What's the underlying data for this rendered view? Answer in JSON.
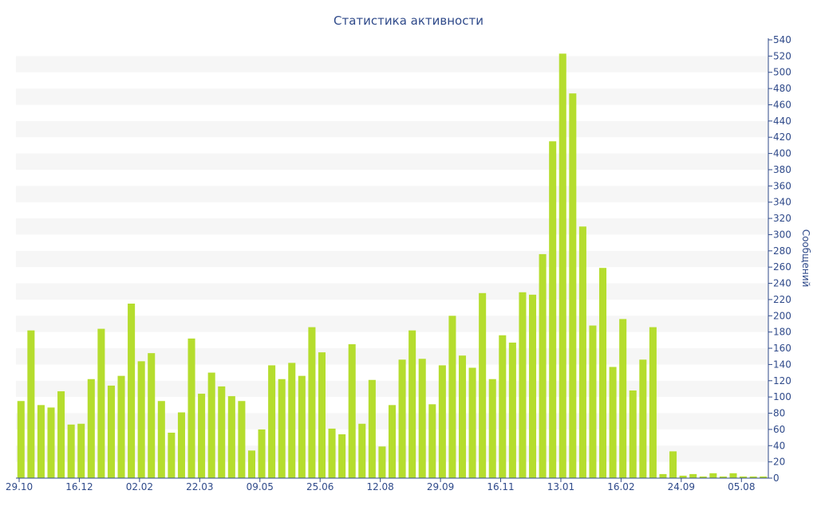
{
  "chart_data": {
    "type": "bar",
    "title": "Статистика активности",
    "xlabel": "",
    "ylabel": "Сообщений",
    "ylim": [
      0,
      540
    ],
    "y_ticks": [
      0,
      20,
      40,
      60,
      80,
      100,
      120,
      140,
      160,
      180,
      200,
      220,
      240,
      260,
      280,
      300,
      320,
      340,
      360,
      380,
      400,
      420,
      440,
      460,
      480,
      500,
      520,
      540
    ],
    "x_tick_labels": [
      {
        "index": 0,
        "label": "29.10"
      },
      {
        "index": 6,
        "label": "16.12"
      },
      {
        "index": 12,
        "label": "02.02"
      },
      {
        "index": 18,
        "label": "22.03"
      },
      {
        "index": 24,
        "label": "09.05"
      },
      {
        "index": 30,
        "label": "25.06"
      },
      {
        "index": 36,
        "label": "12.08"
      },
      {
        "index": 42,
        "label": "29.09"
      },
      {
        "index": 48,
        "label": "16.11"
      },
      {
        "index": 54,
        "label": "13.01"
      },
      {
        "index": 60,
        "label": "16.02"
      },
      {
        "index": 66,
        "label": "24.09"
      },
      {
        "index": 72,
        "label": "05.08"
      }
    ],
    "values": [
      95,
      182,
      90,
      87,
      107,
      66,
      67,
      122,
      184,
      114,
      126,
      215,
      144,
      154,
      95,
      56,
      81,
      172,
      104,
      130,
      113,
      101,
      95,
      34,
      60,
      139,
      122,
      142,
      126,
      186,
      155,
      61,
      54,
      165,
      67,
      121,
      39,
      90,
      146,
      182,
      147,
      91,
      139,
      200,
      151,
      136,
      228,
      122,
      176,
      167,
      229,
      226,
      276,
      415,
      523,
      474,
      310,
      188,
      259,
      137,
      196,
      108,
      146,
      186,
      5,
      33,
      3,
      5,
      2,
      6,
      2,
      6,
      2,
      2,
      2
    ],
    "grid": "horizontal bands",
    "bar_color": "#b5dd2e"
  }
}
